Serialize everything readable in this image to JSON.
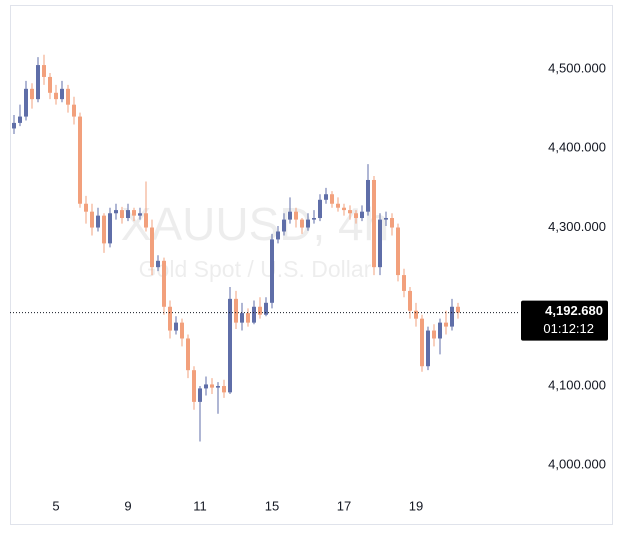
{
  "chart_data": {
    "type": "candlestick",
    "watermark_title": "XAUUSD, 4h",
    "watermark_subtitle": "Gold Spot / U.S. Dollar",
    "categories": [
      null,
      null,
      null,
      null,
      null,
      null,
      null,
      "5",
      null,
      null,
      null,
      null,
      null,
      null,
      null,
      null,
      null,
      null,
      null,
      "9",
      null,
      null,
      null,
      null,
      null,
      null,
      null,
      null,
      null,
      null,
      null,
      "11",
      null,
      null,
      null,
      null,
      null,
      null,
      null,
      null,
      null,
      null,
      null,
      "15",
      null,
      null,
      null,
      null,
      null,
      null,
      null,
      null,
      null,
      null,
      null,
      "17",
      null,
      null,
      null,
      null,
      null,
      null,
      null,
      null,
      null,
      null,
      null,
      "19",
      null,
      null,
      null,
      null,
      null,
      null,
      null
    ],
    "open": [
      4425,
      4432,
      4440,
      4475,
      4462,
      4505,
      4490,
      4470,
      4462,
      4475,
      4455,
      4440,
      4330,
      4320,
      4300,
      4315,
      4280,
      4318,
      4322,
      4312,
      4322,
      4315,
      4318,
      4300,
      4250,
      4258,
      4200,
      4170,
      4180,
      4160,
      4120,
      4080,
      4097,
      4102,
      4098,
      4100,
      4092,
      4210,
      4180,
      4192,
      4180,
      4200,
      4190,
      4205,
      4285,
      4295,
      4310,
      4320,
      4310,
      4300,
      4310,
      4312,
      4335,
      4342,
      4330,
      4325,
      4322,
      4318,
      4312,
      4320,
      4360,
      4250,
      4310,
      4312,
      4300,
      4240,
      4220,
      4195,
      4185,
      4125,
      4170,
      4160,
      4180,
      4175,
      4200
    ],
    "high": [
      4442,
      4455,
      4485,
      4482,
      4515,
      4518,
      4495,
      4480,
      4485,
      4480,
      4465,
      4445,
      4340,
      4330,
      4325,
      4318,
      4325,
      4330,
      4326,
      4330,
      4325,
      4325,
      4358,
      4310,
      4265,
      4262,
      4208,
      4188,
      4185,
      4165,
      4125,
      4100,
      4112,
      4110,
      4105,
      4108,
      4225,
      4220,
      4205,
      4198,
      4208,
      4212,
      4212,
      4292,
      4302,
      4318,
      4338,
      4325,
      4312,
      4318,
      4322,
      4342,
      4350,
      4346,
      4338,
      4330,
      4328,
      4322,
      4328,
      4380,
      4365,
      4318,
      4320,
      4318,
      4305,
      4248,
      4225,
      4205,
      4190,
      4175,
      4178,
      4185,
      4195,
      4210,
      4205
    ],
    "low": [
      4418,
      4428,
      4435,
      4450,
      4458,
      4480,
      4462,
      4455,
      4458,
      4445,
      4430,
      4325,
      4305,
      4290,
      4295,
      4268,
      4275,
      4310,
      4305,
      4308,
      4308,
      4310,
      4295,
      4240,
      4245,
      4190,
      4160,
      4165,
      4150,
      4110,
      4070,
      4030,
      4088,
      4090,
      4065,
      4085,
      4090,
      4172,
      4170,
      4175,
      4178,
      4185,
      4188,
      4198,
      4280,
      4290,
      4305,
      4300,
      4292,
      4296,
      4305,
      4308,
      4330,
      4325,
      4320,
      4315,
      4310,
      4305,
      4308,
      4315,
      4240,
      4240,
      4302,
      4290,
      4232,
      4212,
      4185,
      4175,
      4118,
      4120,
      4150,
      4140,
      4165,
      4170,
      4185
    ],
    "close": [
      4432,
      4440,
      4475,
      4462,
      4505,
      4490,
      4470,
      4462,
      4475,
      4455,
      4440,
      4330,
      4320,
      4300,
      4315,
      4280,
      4318,
      4322,
      4312,
      4322,
      4315,
      4318,
      4300,
      4250,
      4258,
      4200,
      4170,
      4180,
      4160,
      4120,
      4080,
      4097,
      4102,
      4098,
      4100,
      4092,
      4210,
      4180,
      4192,
      4180,
      4200,
      4190,
      4205,
      4285,
      4295,
      4310,
      4320,
      4310,
      4300,
      4310,
      4312,
      4335,
      4342,
      4330,
      4325,
      4322,
      4318,
      4312,
      4320,
      4360,
      4250,
      4310,
      4312,
      4300,
      4240,
      4220,
      4195,
      4185,
      4125,
      4170,
      4160,
      4180,
      4175,
      4200,
      4192.68
    ],
    "up_color": "#5f6ea8",
    "down_color": "#f2a07c",
    "ylim": [
      3962.5,
      4577
    ],
    "yticks": [
      {
        "value": 4000,
        "label": "4,000.000"
      },
      {
        "value": 4100,
        "label": "4,100.000"
      },
      {
        "value": 4200,
        "label": "4,200.000"
      },
      {
        "value": 4300,
        "label": "4,300.000"
      },
      {
        "value": 4400,
        "label": "4,400.000"
      },
      {
        "value": 4500,
        "label": "4,500.000"
      }
    ],
    "grid": false,
    "last_price": {
      "value": 4192.68,
      "label": "4,192.680"
    },
    "countdown": "01:12:12"
  }
}
